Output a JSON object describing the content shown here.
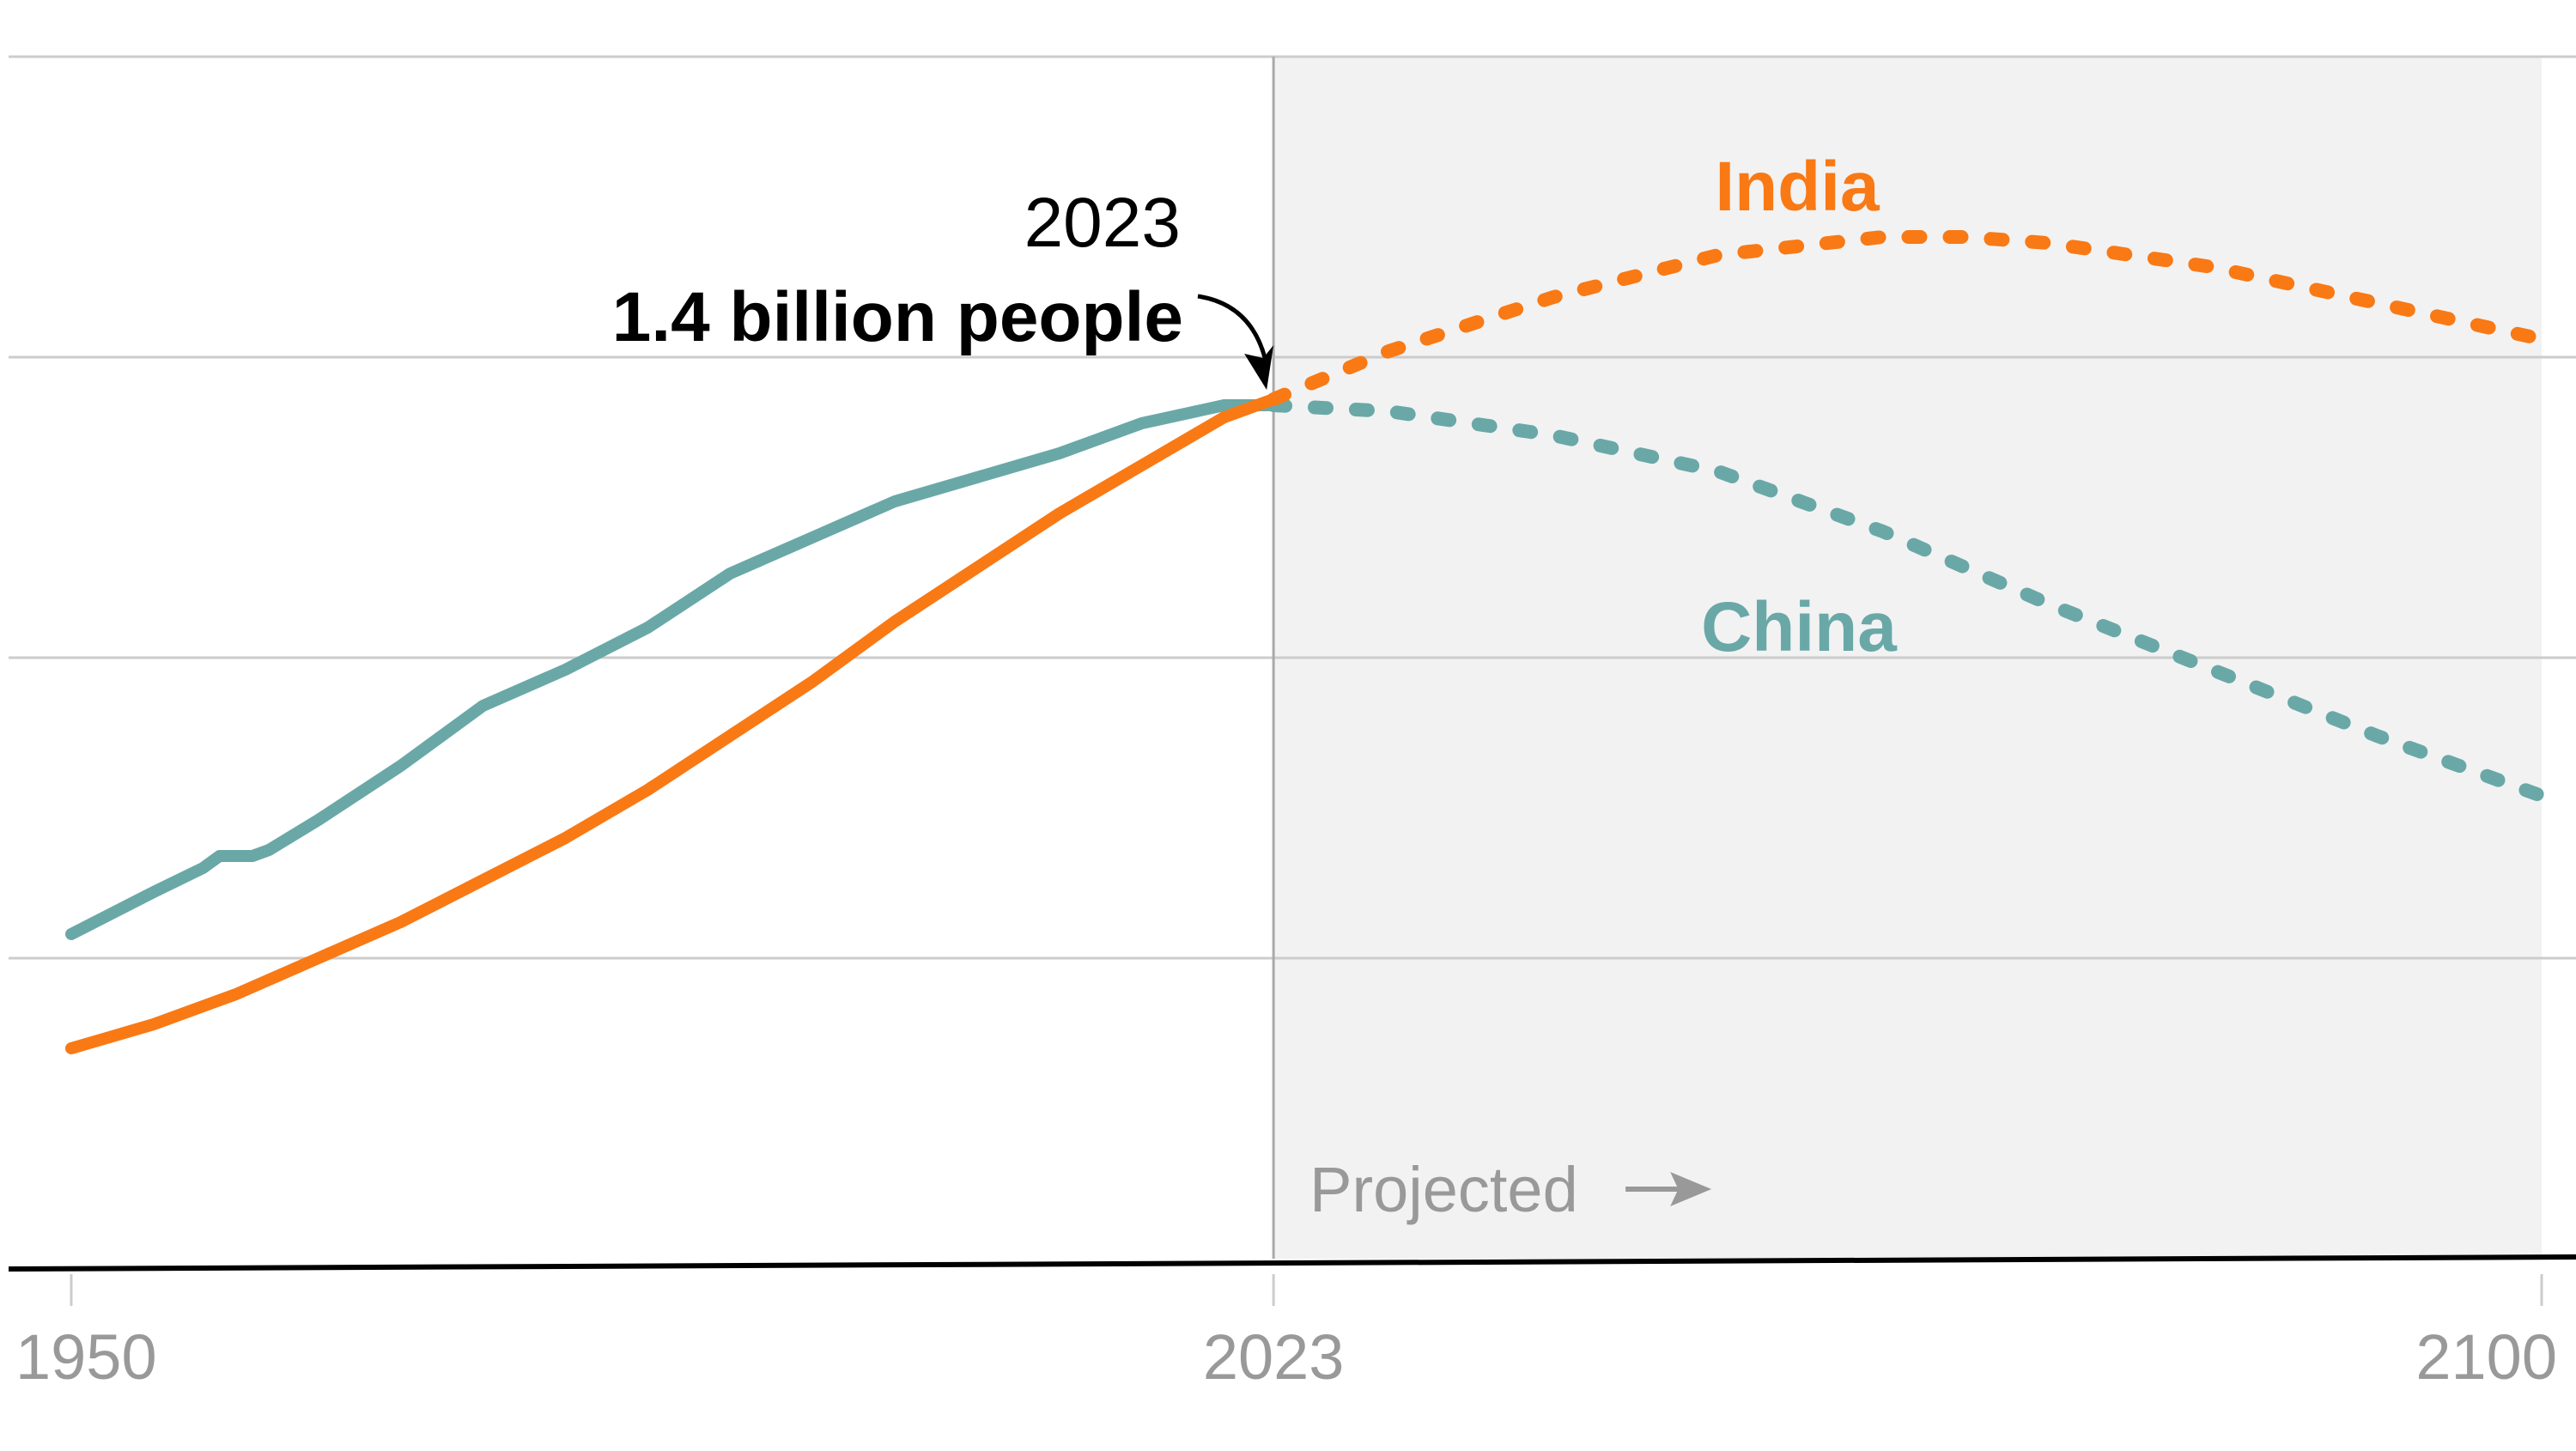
{
  "chart_data": {
    "type": "line",
    "title": "",
    "xlabel": "",
    "ylabel": "",
    "xlim": [
      1950,
      2100
    ],
    "ylim": [
      0,
      2.0
    ],
    "y_unit": "billion people",
    "grid": true,
    "y_gridlines": [
      0.5,
      1.0,
      1.5,
      2.0
    ],
    "x_ticks": [
      1950,
      2023,
      2100
    ],
    "x_tick_labels": [
      "1950",
      "2023",
      "2100"
    ],
    "projection_start": 2023,
    "projection_label": "Projected",
    "annotation": {
      "year_label": "2023",
      "value_label": "1.4 billion people",
      "x": 2023,
      "y": 1.42
    },
    "series": [
      {
        "name": "India",
        "color": "#f97915",
        "historical": {
          "x": [
            1950,
            1955,
            1960,
            1965,
            1970,
            1975,
            1980,
            1985,
            1990,
            1995,
            2000,
            2005,
            2010,
            2015,
            2020,
            2023
          ],
          "values": [
            0.35,
            0.39,
            0.44,
            0.5,
            0.56,
            0.63,
            0.7,
            0.78,
            0.87,
            0.96,
            1.06,
            1.15,
            1.24,
            1.32,
            1.4,
            1.43
          ]
        },
        "projected": {
          "x": [
            2023,
            2030,
            2040,
            2050,
            2060,
            2065,
            2070,
            2080,
            2090,
            2100
          ],
          "values": [
            1.43,
            1.51,
            1.6,
            1.67,
            1.7,
            1.7,
            1.69,
            1.65,
            1.59,
            1.53
          ]
        },
        "label_position": "top-center"
      },
      {
        "name": "China",
        "color": "#6aa8a8",
        "historical": {
          "x": [
            1950,
            1955,
            1958,
            1959,
            1961,
            1962,
            1965,
            1970,
            1975,
            1980,
            1985,
            1990,
            1995,
            2000,
            2005,
            2010,
            2015,
            2020,
            2023
          ],
          "values": [
            0.54,
            0.61,
            0.65,
            0.67,
            0.67,
            0.68,
            0.73,
            0.82,
            0.92,
            0.98,
            1.05,
            1.14,
            1.2,
            1.26,
            1.3,
            1.34,
            1.39,
            1.42,
            1.42
          ]
        },
        "projected": {
          "x": [
            2023,
            2030,
            2040,
            2050,
            2060,
            2070,
            2080,
            2090,
            2100
          ],
          "values": [
            1.42,
            1.41,
            1.37,
            1.31,
            1.21,
            1.09,
            0.98,
            0.87,
            0.77
          ]
        },
        "label_position": "center"
      }
    ]
  },
  "colors": {
    "projection_background": "#f2f2f2",
    "gridline": "#cccccc",
    "axis": "#000000",
    "tick_label": "#999999"
  }
}
